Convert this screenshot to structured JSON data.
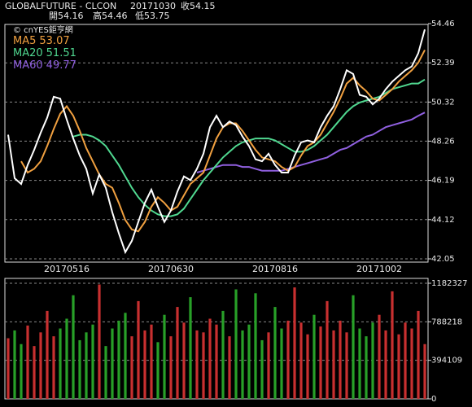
{
  "header": {
    "symbol": "GLOBALFUTURE - CLCON",
    "date": "20171030",
    "close": "收54.15",
    "open": "開54.16",
    "high": "高54.46",
    "low": "低53.75",
    "watermark": "© cnYES鉅亨網"
  },
  "chart_data": [
    {
      "type": "line",
      "categories": [
        null,
        null,
        null,
        null,
        null,
        null,
        null,
        null,
        null,
        "20170516",
        null,
        null,
        null,
        null,
        null,
        null,
        null,
        null,
        null,
        null,
        null,
        null,
        null,
        null,
        null,
        "20170630",
        null,
        null,
        null,
        null,
        null,
        null,
        null,
        null,
        null,
        null,
        null,
        null,
        null,
        null,
        null,
        "20170816",
        null,
        null,
        null,
        null,
        null,
        null,
        null,
        null,
        null,
        null,
        null,
        null,
        null,
        null,
        null,
        "20171002",
        null,
        null,
        null,
        null,
        null,
        null,
        null
      ],
      "series": [
        {
          "color": "#ffffff",
          "values": [
            48.6,
            46.3,
            46.0,
            47.0,
            47.8,
            48.7,
            49.5,
            50.6,
            50.5,
            49.4,
            48.4,
            47.5,
            46.8,
            45.5,
            46.5,
            45.8,
            44.5,
            43.4,
            42.4,
            43.0,
            44.0,
            45.0,
            45.7,
            44.8,
            44.0,
            44.6,
            45.6,
            46.4,
            46.2,
            46.8,
            47.6,
            49.0,
            49.6,
            49.0,
            49.3,
            49.1,
            48.5,
            48.0,
            47.3,
            47.2,
            47.6,
            47.0,
            46.6,
            46.6,
            47.5,
            48.2,
            48.3,
            48.2,
            49.0,
            49.6,
            50.1,
            51.0,
            52.0,
            51.8,
            50.7,
            50.6,
            50.2,
            50.5,
            51.0,
            51.4,
            51.7,
            52.0,
            52.2,
            52.9,
            54.15
          ]
        },
        {
          "name": "MA5",
          "color": "#f0a040",
          "values": [
            null,
            null,
            47.2,
            46.6,
            46.8,
            47.2,
            48.0,
            48.9,
            49.7,
            50.1,
            49.6,
            48.8,
            47.9,
            47.2,
            46.5,
            46.0,
            45.8,
            45.0,
            44.1,
            43.6,
            43.5,
            44.0,
            44.8,
            45.3,
            45.0,
            44.6,
            44.8,
            45.4,
            46.0,
            46.3,
            46.6,
            47.5,
            48.4,
            49.0,
            49.2,
            49.2,
            48.8,
            48.3,
            47.8,
            47.4,
            47.3,
            47.2,
            46.9,
            46.7,
            46.9,
            47.5,
            48.0,
            48.2,
            48.6,
            49.2,
            49.8,
            50.5,
            51.3,
            51.6,
            51.2,
            50.9,
            50.5,
            50.4,
            50.7,
            51.0,
            51.4,
            51.7,
            52.0,
            52.4,
            53.07
          ]
        },
        {
          "name": "MA20",
          "color": "#50d890",
          "values": [
            null,
            null,
            null,
            null,
            null,
            null,
            null,
            null,
            null,
            null,
            48.5,
            48.6,
            48.6,
            48.5,
            48.3,
            48.0,
            47.5,
            47.0,
            46.4,
            45.8,
            45.3,
            44.9,
            44.6,
            44.4,
            44.3,
            44.3,
            44.4,
            44.7,
            45.2,
            45.7,
            46.2,
            46.6,
            47.0,
            47.4,
            47.7,
            48.0,
            48.2,
            48.3,
            48.4,
            48.4,
            48.4,
            48.3,
            48.1,
            47.9,
            47.7,
            47.7,
            47.8,
            48.0,
            48.3,
            48.6,
            49.0,
            49.4,
            49.8,
            50.1,
            50.3,
            50.4,
            50.5,
            50.6,
            50.8,
            51.0,
            51.1,
            51.2,
            51.3,
            51.3,
            51.51
          ]
        },
        {
          "name": "MA60",
          "color": "#9060e0",
          "values": [
            null,
            null,
            null,
            null,
            null,
            null,
            null,
            null,
            null,
            null,
            null,
            null,
            null,
            null,
            null,
            null,
            null,
            null,
            null,
            null,
            null,
            null,
            null,
            null,
            null,
            null,
            null,
            null,
            null,
            46.6,
            46.7,
            46.8,
            46.9,
            47.0,
            47.0,
            47.0,
            46.9,
            46.9,
            46.8,
            46.7,
            46.7,
            46.7,
            46.7,
            46.8,
            46.9,
            47.0,
            47.1,
            47.2,
            47.3,
            47.4,
            47.6,
            47.8,
            47.9,
            48.1,
            48.3,
            48.5,
            48.6,
            48.8,
            49.0,
            49.1,
            49.2,
            49.3,
            49.4,
            49.6,
            49.77
          ]
        }
      ],
      "ylim": [
        42.05,
        54.46
      ],
      "yticks": [
        54.46,
        52.39,
        50.32,
        48.26,
        46.19,
        44.12,
        42.05
      ],
      "grid": true
    },
    {
      "type": "bar",
      "values": [
        620000,
        700000,
        560000,
        750000,
        540000,
        680000,
        900000,
        640000,
        720000,
        820000,
        1060000,
        600000,
        680000,
        760000,
        1170000,
        540000,
        720000,
        800000,
        880000,
        640000,
        1000000,
        700000,
        760000,
        580000,
        860000,
        640000,
        940000,
        780000,
        1040000,
        700000,
        680000,
        820000,
        760000,
        900000,
        640000,
        1120000,
        700000,
        760000,
        1080000,
        600000,
        680000,
        940000,
        720000,
        800000,
        1140000,
        780000,
        660000,
        860000,
        740000,
        1000000,
        700000,
        800000,
        680000,
        1060000,
        720000,
        640000,
        780000,
        860000,
        700000,
        1100000,
        660000,
        780000,
        720000,
        900000,
        560000
      ],
      "up_color": "#c83030",
      "down_color": "#28a028",
      "ylim": [
        0,
        1182327
      ],
      "yticks": [
        1182327,
        788218,
        394109,
        0
      ],
      "grid": true
    }
  ]
}
